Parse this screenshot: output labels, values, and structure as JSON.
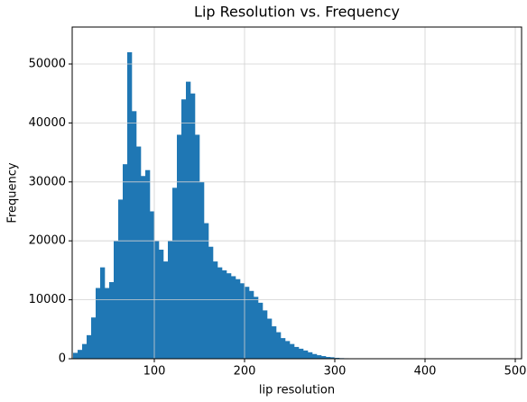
{
  "chart_data": {
    "type": "histogram",
    "title": "Lip Resolution vs. Frequency",
    "x_label": "lip resolution",
    "y_label": "Frequency",
    "bins": [
      10,
      15,
      20,
      25,
      30,
      35,
      40,
      45,
      50,
      55,
      60,
      65,
      70,
      75,
      80,
      85,
      90,
      95,
      100,
      105,
      110,
      115,
      120,
      125,
      130,
      135,
      140,
      145,
      150,
      155,
      160,
      165,
      170,
      175,
      180,
      185,
      190,
      195,
      200,
      205,
      210,
      215,
      220,
      225,
      230,
      235,
      240,
      245,
      250,
      255,
      260,
      265,
      270,
      275,
      280,
      285,
      290,
      295,
      300,
      305,
      310,
      315,
      320
    ],
    "values": [
      1000,
      1500,
      2500,
      4000,
      7000,
      12000,
      15500,
      12000,
      13000,
      20000,
      27000,
      33000,
      52000,
      42000,
      36000,
      31000,
      32000,
      25000,
      20000,
      18500,
      16500,
      20000,
      29000,
      38000,
      44000,
      47000,
      45000,
      38000,
      30000,
      23000,
      19000,
      16500,
      15500,
      15000,
      14500,
      14000,
      13500,
      12800,
      12200,
      11500,
      10500,
      9500,
      8200,
      6800,
      5500,
      4500,
      3500,
      3000,
      2500,
      2000,
      1700,
      1400,
      1100,
      800,
      600,
      450,
      300,
      250,
      150,
      100,
      80,
      50
    ],
    "color": "#1f77b4",
    "xlim": [
      9,
      507
    ],
    "ylim": [
      0,
      56270
    ],
    "xticks": [
      100,
      200,
      300,
      400,
      500
    ],
    "yticks": [
      0,
      10000,
      20000,
      30000,
      40000,
      50000
    ],
    "grid": true
  }
}
